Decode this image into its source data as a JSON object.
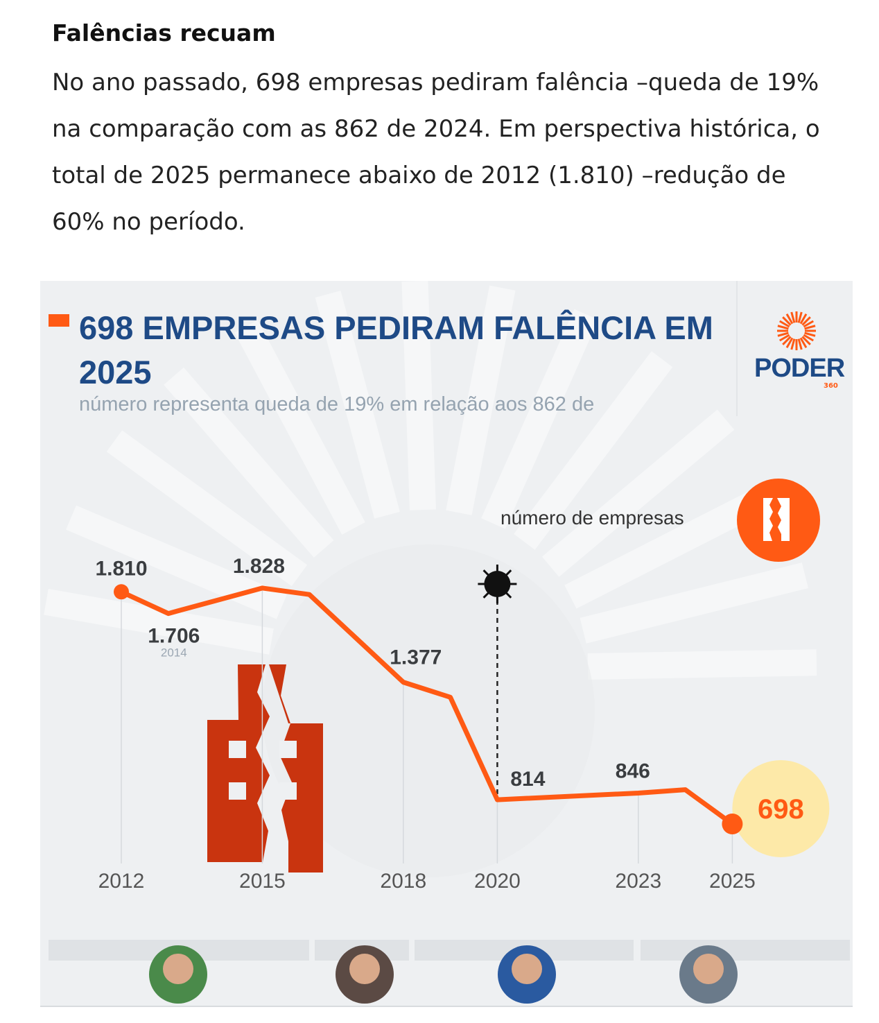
{
  "article": {
    "title": "Falências recuam",
    "body": "No ano passado, 698 empresas pediram falência –queda de 19% na comparação com as 862 de 2024. Em perspectiva histórica, o total de 2025 permanece abaixo de 2012 (1.810) –redução de 60% no período."
  },
  "infographic": {
    "title": "698 EMPRESAS PEDIRAM FALÊNCIA EM 2025",
    "subtitle": "número representa queda de 19% em relação aos 862 de",
    "logo": "PODER",
    "logo_sub": "360",
    "legend": "número de empresas",
    "colors": {
      "line": "#ff5a14",
      "title": "#1e4a86",
      "highlight": "#fde9a8",
      "building": "#c9340f"
    }
  },
  "chart_data": {
    "type": "line",
    "title": "698 EMPRESAS PEDIRAM FALÊNCIA EM 2025",
    "legend": "número de empresas",
    "x_ticks": [
      "2012",
      "2015",
      "2018",
      "2020",
      "2023",
      "2025"
    ],
    "xlim": [
      2012,
      2025
    ],
    "annotation": "COVID-19 (virus icon at 2020)",
    "series": [
      {
        "name": "número de empresas",
        "points": [
          {
            "x": 2012,
            "y": 1810,
            "label": "1.810"
          },
          {
            "x": 2013,
            "y": 1706,
            "label": "1.706",
            "sublabel": "2014"
          },
          {
            "x": 2015,
            "y": 1828,
            "label": "1.828"
          },
          {
            "x": 2016,
            "y": 1797
          },
          {
            "x": 2018,
            "y": 1377,
            "label": "1.377"
          },
          {
            "x": 2019,
            "y": 1305
          },
          {
            "x": 2020,
            "y": 814,
            "label": "814"
          },
          {
            "x": 2023,
            "y": 846,
            "label": "846"
          },
          {
            "x": 2024,
            "y": 862
          },
          {
            "x": 2025,
            "y": 698,
            "label": "698"
          }
        ]
      }
    ]
  }
}
